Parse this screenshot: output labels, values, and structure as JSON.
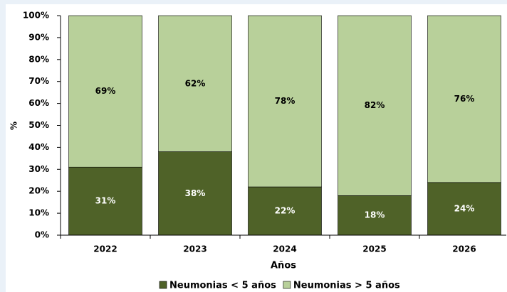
{
  "chart_data": {
    "type": "stacked_bar",
    "x_label": "Años",
    "y_label": "%",
    "categories": [
      "2022",
      "2023",
      "2024",
      "2025",
      "2026"
    ],
    "series": [
      {
        "name": "Neumonias < 5 años",
        "color": "#4f6228",
        "label_color": "#ffffff",
        "values": [
          31,
          38,
          22,
          18,
          24
        ],
        "value_labels": [
          "31%",
          "38%",
          "22%",
          "18%",
          "24%"
        ]
      },
      {
        "name": "Neumonias > 5 años",
        "color": "#b8d09a",
        "label_color": "#000000",
        "values": [
          69,
          62,
          78,
          82,
          76
        ],
        "value_labels": [
          "69%",
          "62%",
          "78%",
          "82%",
          "76%"
        ]
      }
    ],
    "ylim": [
      0,
      100
    ],
    "yticks": [
      {
        "value": 0,
        "label": "0%"
      },
      {
        "value": 10,
        "label": "10%"
      },
      {
        "value": 20,
        "label": "20%"
      },
      {
        "value": 30,
        "label": "30%"
      },
      {
        "value": 40,
        "label": "40%"
      },
      {
        "value": 50,
        "label": "50%"
      },
      {
        "value": 60,
        "label": "60%"
      },
      {
        "value": 70,
        "label": "70%"
      },
      {
        "value": 80,
        "label": "80%"
      },
      {
        "value": 90,
        "label": "90%"
      },
      {
        "value": 100,
        "label": "100%"
      }
    ]
  }
}
